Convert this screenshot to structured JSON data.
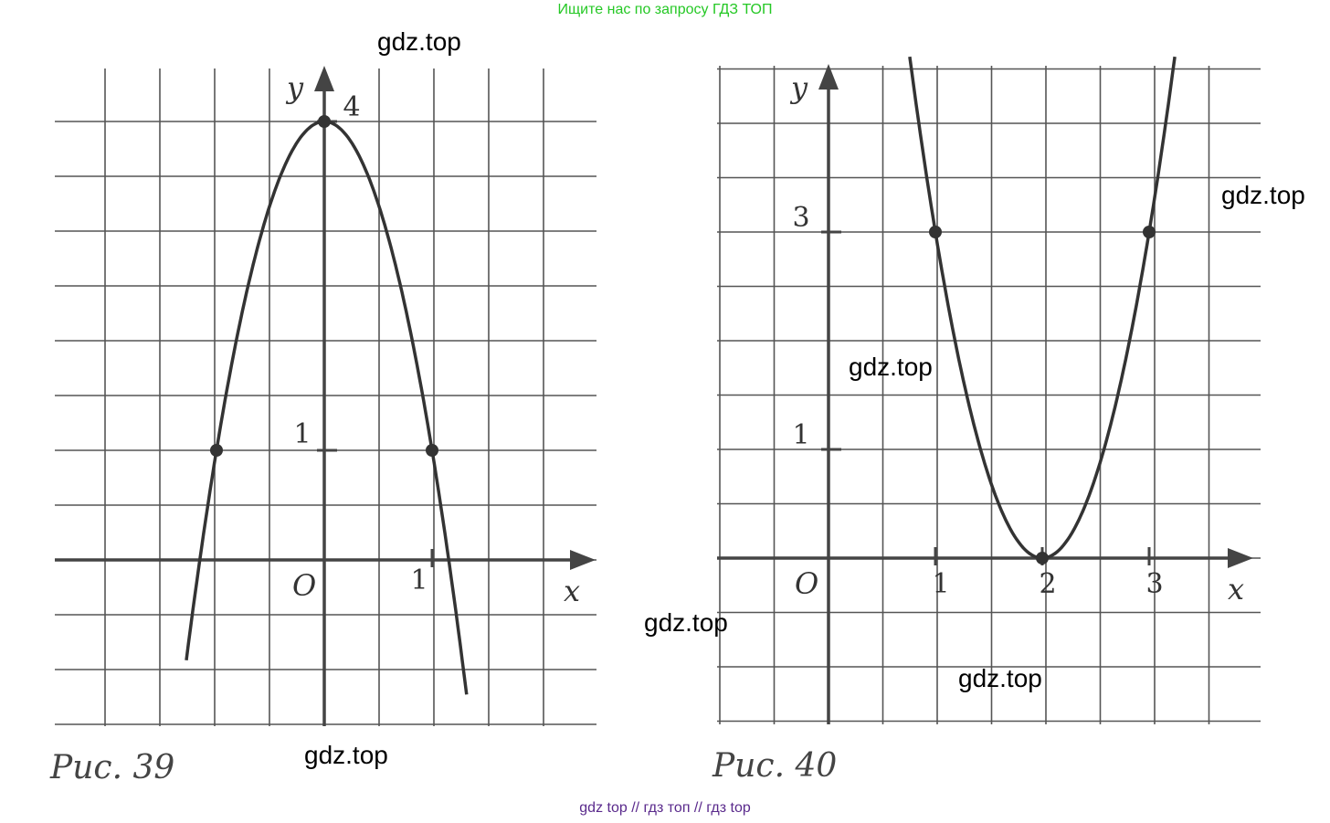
{
  "header": {
    "text": "Ищите нас по запросу ГДЗ ТОП"
  },
  "footer": {
    "text": "gdz top  //  гдз топ  //  гдз top"
  },
  "watermarks": [
    "gdz.top",
    "gdz.top",
    "gdz.top",
    "gdz.top",
    "gdz.top",
    "gdz.top"
  ],
  "colors": {
    "header": "#25c825",
    "footer": "#5a2a8c",
    "grid": "#555555",
    "curve": "#333333"
  },
  "chart_data": [
    {
      "type": "line",
      "caption": "Рис. 39",
      "grid": true,
      "xlabel": "x",
      "ylabel": "y",
      "origin_label": "O",
      "tick_labels": {
        "x": [
          {
            "value": 1,
            "text": "1"
          }
        ],
        "y": [
          {
            "value": 1,
            "text": "1"
          },
          {
            "value": 4,
            "text": "4"
          }
        ]
      },
      "xlim": [
        -5,
        5
      ],
      "ylim": [
        -3,
        9
      ],
      "series": [
        {
          "function": "y = 4 - 3x^2",
          "x": [
            -1.28,
            -1,
            -0.5,
            0,
            0.5,
            1,
            1.32
          ],
          "y": [
            -0.9,
            1,
            3.25,
            4,
            3.25,
            1,
            -1.2
          ]
        }
      ],
      "points": [
        {
          "x": -1,
          "y": 1
        },
        {
          "x": 0,
          "y": 4
        },
        {
          "x": 1,
          "y": 1
        }
      ]
    },
    {
      "type": "line",
      "caption": "Рис. 40",
      "grid": true,
      "xlabel": "x",
      "ylabel": "y",
      "origin_label": "O",
      "tick_labels": {
        "x": [
          {
            "value": 1,
            "text": "1"
          },
          {
            "value": 2,
            "text": "2"
          },
          {
            "value": 3,
            "text": "3"
          }
        ],
        "y": [
          {
            "value": 1,
            "text": "1"
          },
          {
            "value": 3,
            "text": "3"
          }
        ]
      },
      "xlim": [
        -2,
        8
      ],
      "ylim": [
        -3,
        9
      ],
      "series": [
        {
          "function": "y = 3(x - 2)^2",
          "x": [
            0.76,
            1,
            1.5,
            2,
            2.5,
            3,
            3.24
          ],
          "y": [
            4.6,
            3,
            0.75,
            0,
            0.75,
            3,
            4.6
          ]
        }
      ],
      "points": [
        {
          "x": 1,
          "y": 3
        },
        {
          "x": 2,
          "y": 0
        },
        {
          "x": 3,
          "y": 3
        }
      ]
    }
  ]
}
